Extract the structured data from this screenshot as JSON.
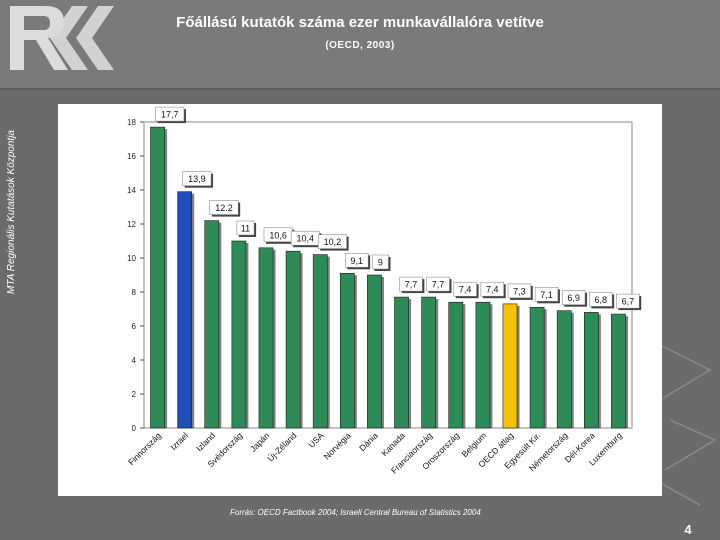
{
  "slide": {
    "title": "Főállású kutatók száma ezer munkavállalóra vetítve",
    "subtitle": "(OECD, 2003)",
    "side_text": "MTA Regionális Kutatások Központja",
    "source": "Forrás: OECD Factbook 2004; Israeli Central Bureau of Statistics 2004",
    "page_number": "4",
    "logo_icon": "rkk-logo-icon"
  },
  "colors": {
    "default_bar": "#2e8b57",
    "israel_bar": "#1f4fb5",
    "oecd_avg_bar": "#f2c20f"
  },
  "chart_data": {
    "type": "bar",
    "categories": [
      "Finnország",
      "Izrael",
      "Izland",
      "Svédország",
      "Japán",
      "Új-Zéland",
      "USA",
      "Norvégia",
      "Dánia",
      "Kanada",
      "Franciaország",
      "Oroszország",
      "Belgium",
      "OECD átlag",
      "Egyesült Kir.",
      "Németország",
      "Dél-Korea",
      "Luxemburg"
    ],
    "values": [
      17.7,
      13.9,
      12.2,
      11,
      10.6,
      10.4,
      10.2,
      9.1,
      9,
      7.7,
      7.7,
      7.4,
      7.4,
      7.3,
      7.1,
      6.9,
      6.8,
      6.7
    ],
    "value_labels": [
      "17,7",
      "13,9",
      "12.2",
      "11",
      "10,6",
      "10,4",
      "10,2",
      "9,1",
      "9",
      "7,7",
      "7,7",
      "7,4",
      "7,4",
      "7,3",
      "7,1",
      "6,9",
      "6,8",
      "6,7"
    ],
    "highlight": {
      "Izrael": "israel_bar",
      "OECD átlag": "oecd_avg_bar"
    },
    "ylim": [
      0,
      18
    ],
    "yticks": [
      0,
      2,
      4,
      6,
      8,
      10,
      12,
      14,
      16,
      18
    ],
    "xlabel": "",
    "ylabel": "",
    "grid": false,
    "legend": "none"
  }
}
